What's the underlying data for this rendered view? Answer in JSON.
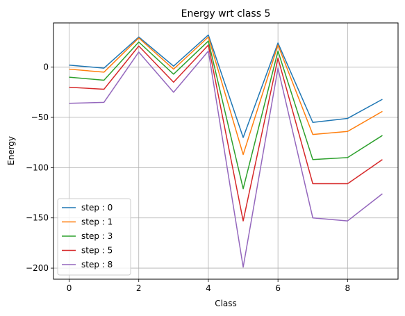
{
  "chart_data": {
    "type": "line",
    "title": "Energy wrt class 5",
    "xlabel": "Class",
    "ylabel": "Energy",
    "x": [
      0,
      1,
      2,
      3,
      4,
      5,
      6,
      7,
      8,
      9
    ],
    "xlim": [
      -0.45,
      9.45
    ],
    "ylim": [
      -211,
      44
    ],
    "xticks": [
      0,
      2,
      4,
      6,
      8
    ],
    "yticks": [
      0,
      -50,
      -100,
      -150,
      -200
    ],
    "grid": true,
    "legend_position": "lower-left",
    "series": [
      {
        "name": "step : 0",
        "color": "#1f77b4",
        "values": [
          2,
          -1,
          30,
          1,
          32,
          -70,
          24,
          -55,
          -51,
          -32
        ]
      },
      {
        "name": "step : 1",
        "color": "#ff7f0e",
        "values": [
          -2,
          -5,
          29,
          -2,
          30,
          -87,
          22,
          -67,
          -64,
          -44
        ]
      },
      {
        "name": "step : 3",
        "color": "#2ca02c",
        "values": [
          -10,
          -13,
          25,
          -7,
          26,
          -121,
          16,
          -92,
          -90,
          -68
        ]
      },
      {
        "name": "step : 5",
        "color": "#d62728",
        "values": [
          -20,
          -22,
          21,
          -15,
          22,
          -153,
          9,
          -116,
          -116,
          -92
        ]
      },
      {
        "name": "step : 8",
        "color": "#9467bd",
        "values": [
          -36,
          -35,
          15,
          -25,
          16,
          -199,
          -1,
          -150,
          -153,
          -126
        ]
      }
    ]
  }
}
